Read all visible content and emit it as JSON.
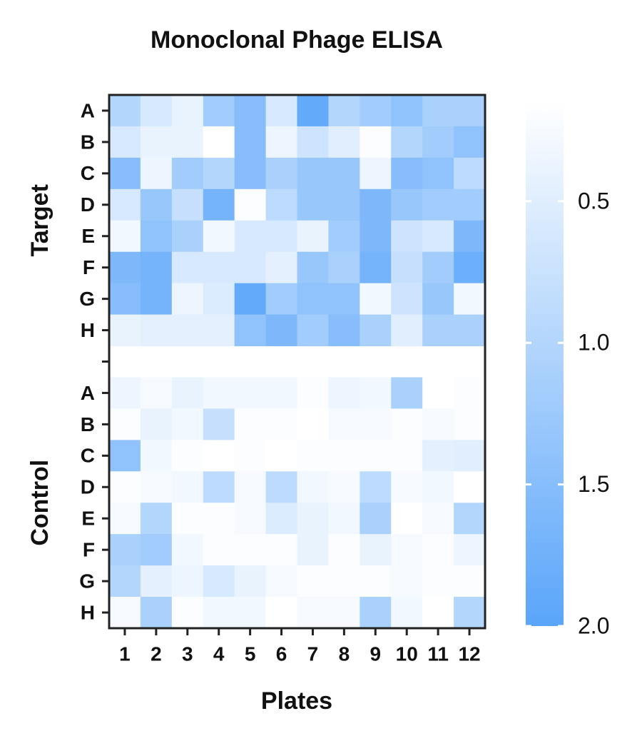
{
  "chart_data": {
    "type": "heatmap",
    "title": "Monoclonal Phage ELISA",
    "xlabel": "Plates",
    "x": [
      "1",
      "2",
      "3",
      "4",
      "5",
      "6",
      "7",
      "8",
      "9",
      "10",
      "11",
      "12"
    ],
    "y": [
      "A",
      "B",
      "C",
      "D",
      "E",
      "F",
      "G",
      "H",
      null,
      "A",
      "B",
      "C",
      "D",
      "E",
      "F",
      "G",
      "H"
    ],
    "row_groups": [
      "Target",
      "Control"
    ],
    "colormap": [
      "#ffffff",
      "#5aa5fa"
    ],
    "zlim": [
      0.15,
      2.0
    ],
    "zticks": [
      0.5,
      {
        "value": 1,
        "label": "1.0"
      },
      1.5,
      {
        "value": 2,
        "label": "2.0"
      }
    ],
    "z": [
      [
        1.0,
        0.6,
        0.4,
        1.2,
        1.5,
        0.6,
        1.9,
        1.0,
        1.2,
        1.4,
        1.1,
        1.1
      ],
      [
        0.6,
        0.4,
        0.4,
        0.15,
        1.5,
        0.35,
        0.7,
        0.5,
        0.2,
        1.0,
        1.2,
        1.4
      ],
      [
        1.5,
        0.35,
        1.2,
        1.0,
        1.5,
        1.1,
        1.3,
        1.3,
        0.35,
        1.5,
        1.4,
        0.9
      ],
      [
        0.6,
        1.3,
        0.8,
        1.7,
        0.2,
        0.9,
        1.3,
        1.3,
        1.6,
        1.3,
        1.2,
        1.2
      ],
      [
        0.3,
        1.4,
        1.1,
        0.3,
        0.6,
        0.6,
        0.4,
        1.2,
        1.6,
        0.7,
        0.6,
        1.6
      ],
      [
        1.6,
        1.7,
        0.6,
        0.6,
        0.6,
        0.45,
        1.3,
        1.1,
        1.7,
        0.8,
        1.2,
        1.8
      ],
      [
        1.5,
        1.7,
        0.35,
        0.55,
        1.9,
        1.2,
        1.4,
        1.4,
        0.3,
        0.7,
        1.3,
        0.3
      ],
      [
        0.4,
        0.45,
        0.45,
        0.45,
        1.4,
        1.6,
        1.2,
        1.5,
        1.1,
        0.5,
        1.1,
        1.1
      ],
      [
        null,
        null,
        null,
        null,
        null,
        null,
        null,
        null,
        null,
        null,
        null,
        null
      ],
      [
        0.35,
        0.25,
        0.4,
        0.3,
        0.3,
        0.3,
        0.2,
        0.35,
        0.3,
        1.1,
        0.15,
        0.2
      ],
      [
        0.2,
        0.4,
        0.3,
        0.8,
        0.2,
        0.2,
        0.15,
        0.25,
        0.25,
        0.2,
        0.25,
        0.2
      ],
      [
        1.4,
        0.3,
        0.2,
        0.15,
        0.2,
        0.15,
        0.2,
        0.2,
        0.2,
        0.2,
        0.45,
        0.5
      ],
      [
        0.2,
        0.25,
        0.3,
        0.9,
        0.25,
        0.9,
        0.3,
        0.25,
        0.9,
        0.25,
        0.3,
        0.15
      ],
      [
        0.25,
        1.0,
        0.2,
        0.2,
        0.25,
        0.55,
        0.4,
        0.3,
        1.1,
        0.15,
        0.25,
        1.0
      ],
      [
        1.1,
        1.2,
        0.3,
        0.2,
        0.2,
        0.2,
        0.4,
        0.2,
        0.4,
        0.25,
        0.2,
        0.35
      ],
      [
        1.0,
        0.45,
        0.35,
        0.6,
        0.4,
        0.25,
        0.2,
        0.2,
        0.2,
        0.25,
        0.2,
        0.2
      ],
      [
        0.25,
        1.1,
        0.2,
        0.3,
        0.3,
        0.15,
        0.25,
        0.25,
        1.1,
        0.3,
        0.15,
        1.0
      ]
    ]
  }
}
